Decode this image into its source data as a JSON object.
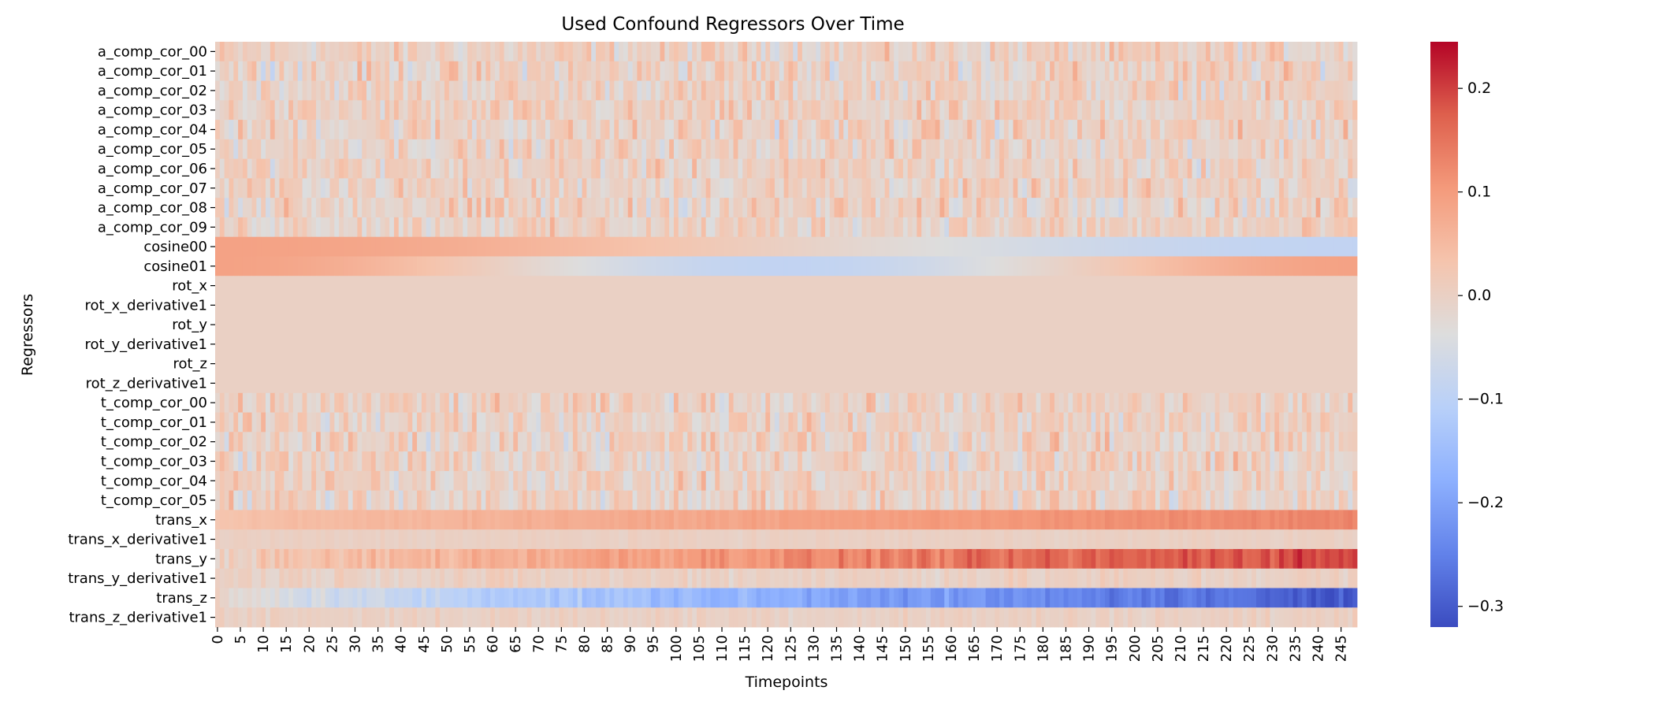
{
  "chart_data": {
    "type": "heatmap",
    "title": "Used Confound Regressors Over Time",
    "xlabel": "Timepoints",
    "ylabel": "Regressors",
    "n_timepoints": 249,
    "x_tick_labels": [
      "0",
      "5",
      "10",
      "15",
      "20",
      "25",
      "30",
      "35",
      "40",
      "45",
      "50",
      "55",
      "60",
      "65",
      "70",
      "75",
      "80",
      "85",
      "90",
      "95",
      "100",
      "105",
      "110",
      "115",
      "120",
      "125",
      "130",
      "135",
      "140",
      "145",
      "150",
      "155",
      "160",
      "165",
      "170",
      "175",
      "180",
      "185",
      "190",
      "195",
      "200",
      "205",
      "210",
      "215",
      "220",
      "225",
      "230",
      "235",
      "240",
      "245"
    ],
    "y_labels": [
      "a_comp_cor_00",
      "a_comp_cor_01",
      "a_comp_cor_02",
      "a_comp_cor_03",
      "a_comp_cor_04",
      "a_comp_cor_05",
      "a_comp_cor_06",
      "a_comp_cor_07",
      "a_comp_cor_08",
      "a_comp_cor_09",
      "cosine00",
      "cosine01",
      "rot_x",
      "rot_x_derivative1",
      "rot_y",
      "rot_y_derivative1",
      "rot_z",
      "rot_z_derivative1",
      "t_comp_cor_00",
      "t_comp_cor_01",
      "t_comp_cor_02",
      "t_comp_cor_03",
      "t_comp_cor_04",
      "t_comp_cor_05",
      "trans_x",
      "trans_x_derivative1",
      "trans_y",
      "trans_y_derivative1",
      "trans_z",
      "trans_z_derivative1"
    ],
    "colormap": "coolwarm",
    "vmin": -0.32,
    "vmax": 0.245,
    "colorbar_ticks": [
      0.2,
      0.1,
      0.0,
      -0.1,
      -0.2,
      -0.3
    ],
    "colorbar_tick_labels": [
      "0.2",
      "0.1",
      "0.0",
      "−0.1",
      "−0.2",
      "−0.3"
    ],
    "series_profiles": {
      "a_comp_cor_00": {
        "kind": "noise",
        "amp": 0.06
      },
      "a_comp_cor_01": {
        "kind": "noise",
        "amp": 0.07
      },
      "a_comp_cor_02": {
        "kind": "noise",
        "amp": 0.06
      },
      "a_comp_cor_03": {
        "kind": "noise",
        "amp": 0.06
      },
      "a_comp_cor_04": {
        "kind": "noise",
        "amp": 0.07
      },
      "a_comp_cor_05": {
        "kind": "noise",
        "amp": 0.06
      },
      "a_comp_cor_06": {
        "kind": "noise",
        "amp": 0.06
      },
      "a_comp_cor_07": {
        "kind": "noise",
        "amp": 0.06
      },
      "a_comp_cor_08": {
        "kind": "noise",
        "amp": 0.07
      },
      "a_comp_cor_09": {
        "kind": "noise",
        "amp": 0.06
      },
      "cosine00": {
        "kind": "cosine",
        "amp": 0.09,
        "freq": 1
      },
      "cosine01": {
        "kind": "cosine",
        "amp": 0.09,
        "freq": 2
      },
      "rot_x": {
        "kind": "flat"
      },
      "rot_x_derivative1": {
        "kind": "flat"
      },
      "rot_y": {
        "kind": "flat"
      },
      "rot_y_derivative1": {
        "kind": "flat"
      },
      "rot_z": {
        "kind": "flat"
      },
      "rot_z_derivative1": {
        "kind": "flat"
      },
      "t_comp_cor_00": {
        "kind": "noise",
        "amp": 0.06
      },
      "t_comp_cor_01": {
        "kind": "noise",
        "amp": 0.06
      },
      "t_comp_cor_02": {
        "kind": "noise",
        "amp": 0.07
      },
      "t_comp_cor_03": {
        "kind": "noise",
        "amp": 0.07
      },
      "t_comp_cor_04": {
        "kind": "noise",
        "amp": 0.06
      },
      "t_comp_cor_05": {
        "kind": "noise",
        "amp": 0.07
      },
      "trans_x": {
        "kind": "trend",
        "start": 0.03,
        "end": 0.13,
        "amp": 0.01
      },
      "trans_x_derivative1": {
        "kind": "noise",
        "amp": 0.01
      },
      "trans_y": {
        "kind": "trend",
        "start": 0.0,
        "end": 0.2,
        "amp": 0.035
      },
      "trans_y_derivative1": {
        "kind": "noise",
        "amp": 0.025
      },
      "trans_z": {
        "kind": "trend",
        "start": -0.01,
        "end": -0.3,
        "amp": 0.03
      },
      "trans_z_derivative1": {
        "kind": "noise",
        "amp": 0.02
      }
    }
  }
}
